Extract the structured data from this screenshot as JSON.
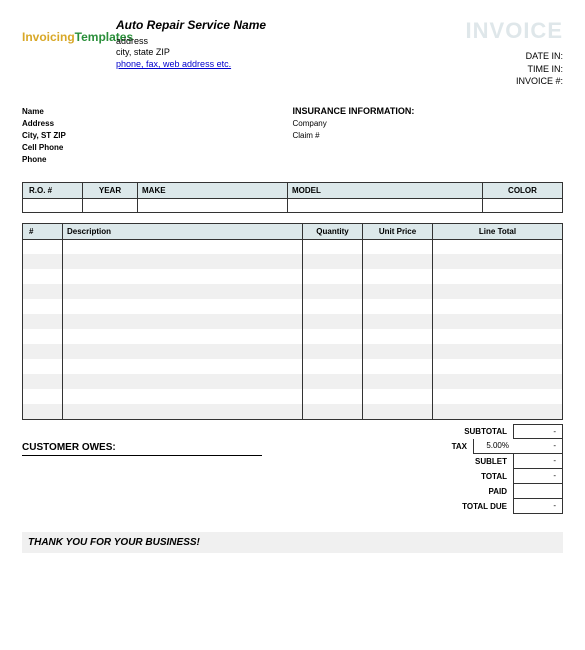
{
  "header": {
    "logo_part1": "Invoicing",
    "logo_part2": "Templates",
    "company_name": "Auto Repair Service Name",
    "address": "address",
    "city_line": "city, state ZIP",
    "contact_link": "phone, fax, web address etc.",
    "invoice_title": "INVOICE",
    "date_in_label": "DATE IN:",
    "time_in_label": "TIME IN:",
    "invoice_num_label": "INVOICE #:"
  },
  "customer": {
    "name": "Name",
    "address": "Address",
    "city": "City, ST ZIP",
    "cell": "Cell Phone",
    "phone": "Phone"
  },
  "insurance": {
    "title": "INSURANCE INFORMATION:",
    "company_label": "Company",
    "claim_label": "Claim #"
  },
  "vehicle_table": {
    "headers": [
      "R.O. #",
      "YEAR",
      "MAKE",
      "MODEL",
      "COLOR"
    ]
  },
  "items_table": {
    "headers": [
      "#",
      "Description",
      "Quantity",
      "Unit Price",
      "Line Total"
    ],
    "row_count": 12
  },
  "totals": {
    "subtotal_label": "SUBTOTAL",
    "tax_label": "TAX",
    "tax_rate": "5.00%",
    "sublet_label": "SUBLET",
    "total_label": "TOTAL",
    "paid_label": "PAID",
    "total_due_label": "TOTAL DUE",
    "dash": "-"
  },
  "customer_owes_label": "CUSTOMER OWES:",
  "thank_you": "THANK YOU FOR YOUR BUSINESS!"
}
